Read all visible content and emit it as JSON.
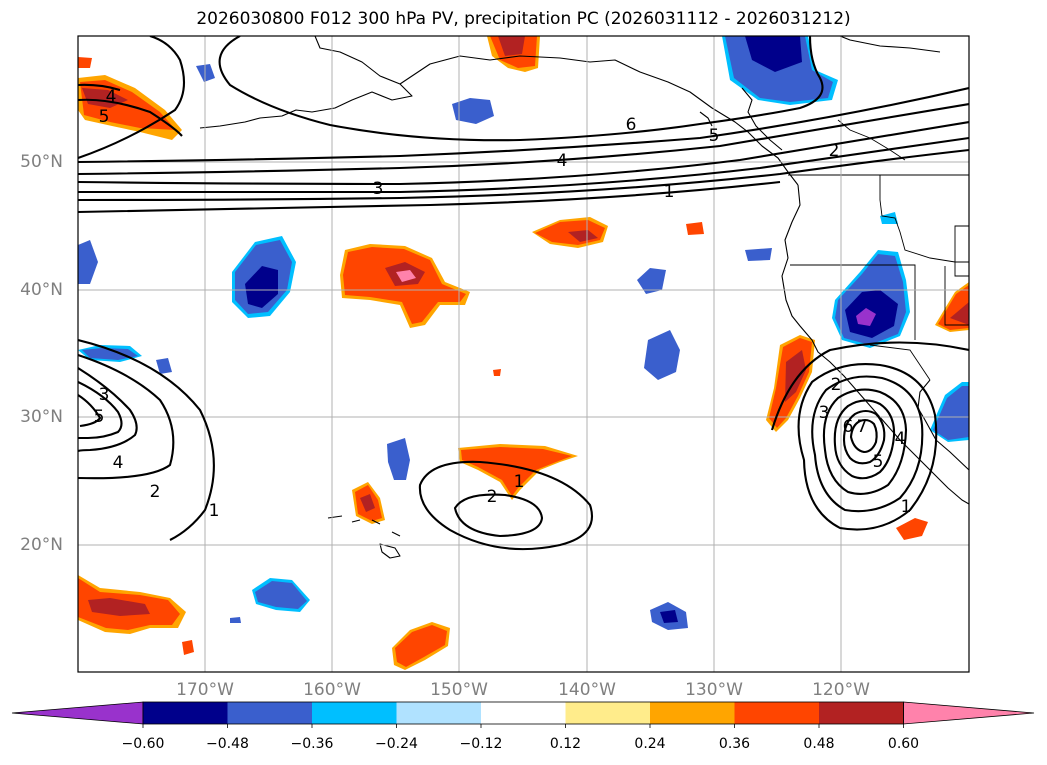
{
  "title": "2026030800 F012 300 hPa PV, precipitation PC (2026031112 - 2026031212)",
  "map": {
    "lat_labels": [
      "50°N",
      "40°N",
      "30°N",
      "20°N"
    ],
    "lon_labels": [
      "170°W",
      "160°W",
      "150°W",
      "140°W",
      "130°W",
      "120°W"
    ],
    "gridline_color": "#b0b0b0",
    "land_outline_color": "#000000"
  },
  "contours": {
    "variable": "300 hPa PV",
    "labels": [
      {
        "text": "4"
      },
      {
        "text": "5"
      },
      {
        "text": "6"
      },
      {
        "text": "5"
      },
      {
        "text": "4"
      },
      {
        "text": "3"
      },
      {
        "text": "1"
      },
      {
        "text": "2"
      },
      {
        "text": "3"
      },
      {
        "text": "5"
      },
      {
        "text": "4"
      },
      {
        "text": "2"
      },
      {
        "text": "1"
      },
      {
        "text": "1"
      },
      {
        "text": "2"
      },
      {
        "text": "2"
      },
      {
        "text": "3"
      },
      {
        "text": "6"
      },
      {
        "text": "7"
      },
      {
        "text": "5"
      },
      {
        "text": "4"
      },
      {
        "text": "1"
      }
    ]
  },
  "colorbar": {
    "variable": "precipitation PC",
    "colors": [
      "#9932cc",
      "#00008b",
      "#3a5fcd",
      "#00bfff",
      "#b0e2ff",
      "#ffffff",
      "#ffec8b",
      "#ffa500",
      "#ff4500",
      "#b22222",
      "#ff82ab"
    ],
    "ticks": [
      "−0.60",
      "−0.48",
      "−0.36",
      "−0.24",
      "−0.12",
      "0.12",
      "0.24",
      "0.36",
      "0.48",
      "0.60"
    ]
  }
}
